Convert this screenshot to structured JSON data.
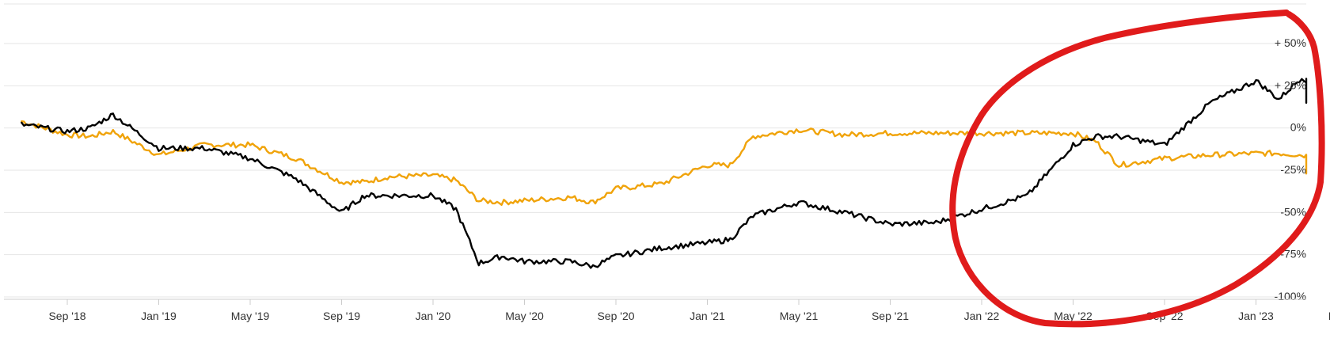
{
  "chart_data": {
    "type": "line",
    "title": "",
    "xlabel": "",
    "ylabel": "",
    "ylim": [
      -100,
      70
    ],
    "grid": true,
    "legend": "none",
    "x_ticks": [
      "Sep '18",
      "Jan '19",
      "May '19",
      "Sep '19",
      "Jan '20",
      "May '20",
      "Sep '20",
      "Jan '21",
      "May '21",
      "Sep '21",
      "Jan '22",
      "May '22",
      "Sep '22",
      "Jan '23",
      "May '23"
    ],
    "y_ticks": [
      {
        "value": 50,
        "label": "+ 50%"
      },
      {
        "value": 25,
        "label": "+ 25%"
      },
      {
        "value": 0,
        "label": "0%"
      },
      {
        "value": -25,
        "label": "-25%"
      },
      {
        "value": -50,
        "label": "-50%"
      },
      {
        "value": -75,
        "label": "-75%"
      },
      {
        "value": -100,
        "label": "-100%"
      }
    ],
    "x": [
      "Jul '18",
      "Sep '18",
      "Oct '18",
      "Nov '18",
      "Jan '19",
      "Mar '19",
      "May '19",
      "Jul '19",
      "Sep '19",
      "Oct '19",
      "Nov '19",
      "Jan '20",
      "Feb '20",
      "Mar '20",
      "Apr '20",
      "May '20",
      "Jul '20",
      "Aug '20",
      "Sep '20",
      "Nov '20",
      "Jan '21",
      "Feb '21",
      "Mar '21",
      "May '21",
      "Jul '21",
      "Sep '21",
      "Nov '21",
      "Jan '22",
      "Mar '22",
      "May '22",
      "Jun '22",
      "Jul '22",
      "Sep '22",
      "Nov '22",
      "Jan '23",
      "Feb '23",
      "Mar '23",
      "May '23",
      "Jun '23"
    ],
    "series": [
      {
        "color": "#000000",
        "values": [
          2,
          -2,
          0,
          8,
          -12,
          -12,
          -18,
          -30,
          -50,
          -40,
          -40,
          -40,
          -48,
          -80,
          -76,
          -79,
          -79,
          -82,
          -76,
          -71,
          -68,
          -66,
          -52,
          -44,
          -50,
          -57,
          -56,
          -48,
          -40,
          -10,
          -5,
          -5,
          -10,
          15,
          28,
          17,
          30,
          15,
          25
        ]
      },
      {
        "color": "#f0a30a",
        "values": [
          4,
          -4,
          -5,
          -2,
          -16,
          -10,
          -10,
          -18,
          -32,
          -32,
          -29,
          -28,
          -31,
          -43,
          -44,
          -43,
          -41,
          -44,
          -36,
          -33,
          -22,
          -22,
          -5,
          -1,
          -4,
          -3,
          -3,
          -3,
          -3,
          -3,
          -8,
          -22,
          -18,
          -16,
          -15,
          -15,
          -16,
          -20,
          -27
        ]
      }
    ],
    "annotation": {
      "shape": "hand-drawn circle",
      "color": "#e01b1b"
    }
  }
}
